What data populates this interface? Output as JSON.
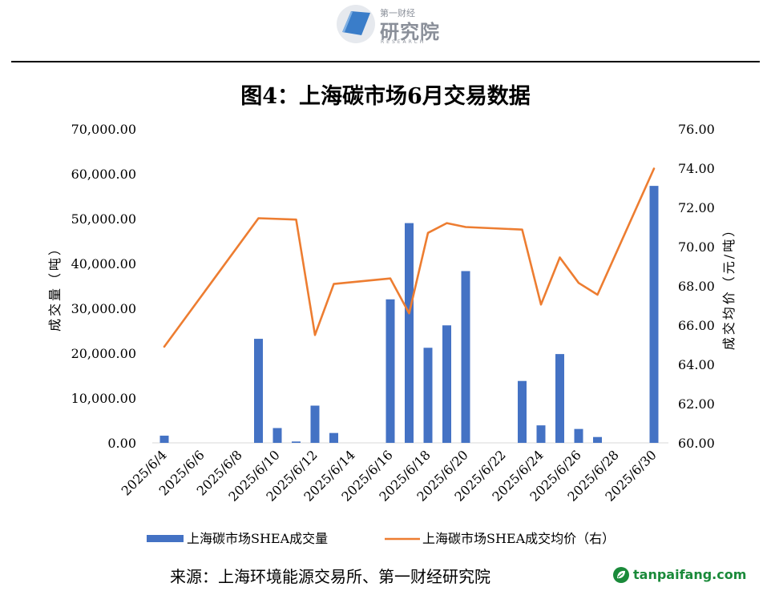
{
  "logo": {
    "cn_small": "第一财经",
    "cn_large": "研究院",
    "en": "RESEARCH"
  },
  "title": "图4：上海碳市场6月交易数据",
  "source": "来源：上海环境能源交易所、第一财经研究院",
  "watermark": "tanpaifang.com",
  "colors": {
    "bar": "#4472c4",
    "line": "#ed7d31",
    "logo": "#3a7dc9",
    "watermark": "#1a8a3a"
  },
  "chart_data": {
    "type": "bar+line",
    "title": "图4：上海碳市场6月交易数据",
    "ylabel": "成交量（吨）",
    "y2label": "成交均价（元/吨）",
    "ylim": [
      0,
      70000
    ],
    "y2lim": [
      60,
      76
    ],
    "y_ticks": [
      "0.00",
      "10,000.00",
      "20,000.00",
      "30,000.00",
      "40,000.00",
      "50,000.00",
      "60,000.00",
      "70,000.00"
    ],
    "y2_ticks": [
      "60.00",
      "62.00",
      "64.00",
      "66.00",
      "68.00",
      "70.00",
      "72.00",
      "74.00",
      "76.00"
    ],
    "x_tick_labels": [
      "2025/6/4",
      "2025/6/6",
      "2025/6/8",
      "2025/6/10",
      "2025/6/12",
      "2025/6/14",
      "2025/6/16",
      "2025/6/18",
      "2025/6/20",
      "2025/6/22",
      "2025/6/24",
      "2025/6/26",
      "2025/6/28",
      "2025/6/30"
    ],
    "legend_position": "bottom",
    "series": [
      {
        "name": "上海碳市场SHEA成交量",
        "type": "bar",
        "axis": "left",
        "points": [
          {
            "x": "2025/6/4",
            "y": 1600
          },
          {
            "x": "2025/6/9",
            "y": 23200
          },
          {
            "x": "2025/6/10",
            "y": 3300
          },
          {
            "x": "2025/6/11",
            "y": 300
          },
          {
            "x": "2025/6/12",
            "y": 8300
          },
          {
            "x": "2025/6/13",
            "y": 2200
          },
          {
            "x": "2025/6/16",
            "y": 32000
          },
          {
            "x": "2025/6/17",
            "y": 49000
          },
          {
            "x": "2025/6/18",
            "y": 21200
          },
          {
            "x": "2025/6/19",
            "y": 26200
          },
          {
            "x": "2025/6/20",
            "y": 38300
          },
          {
            "x": "2025/6/23",
            "y": 13800
          },
          {
            "x": "2025/6/24",
            "y": 3900
          },
          {
            "x": "2025/6/25",
            "y": 19800
          },
          {
            "x": "2025/6/26",
            "y": 3100
          },
          {
            "x": "2025/6/27",
            "y": 1300
          },
          {
            "x": "2025/6/30",
            "y": 57300
          }
        ]
      },
      {
        "name": "上海碳市场SHEA成交均价（右）",
        "type": "line",
        "axis": "right",
        "points": [
          {
            "x": "2025/6/4",
            "y": 64.9
          },
          {
            "x": "2025/6/9",
            "y": 71.45
          },
          {
            "x": "2025/6/11",
            "y": 71.38
          },
          {
            "x": "2025/6/12",
            "y": 65.5
          },
          {
            "x": "2025/6/13",
            "y": 68.1
          },
          {
            "x": "2025/6/16",
            "y": 68.38
          },
          {
            "x": "2025/6/17",
            "y": 66.6
          },
          {
            "x": "2025/6/18",
            "y": 70.7
          },
          {
            "x": "2025/6/19",
            "y": 71.2
          },
          {
            "x": "2025/6/20",
            "y": 71.0
          },
          {
            "x": "2025/6/23",
            "y": 70.87
          },
          {
            "x": "2025/6/24",
            "y": 67.05
          },
          {
            "x": "2025/6/25",
            "y": 69.45
          },
          {
            "x": "2025/6/26",
            "y": 68.15
          },
          {
            "x": "2025/6/27",
            "y": 67.55
          },
          {
            "x": "2025/6/30",
            "y": 73.98
          }
        ]
      }
    ]
  }
}
